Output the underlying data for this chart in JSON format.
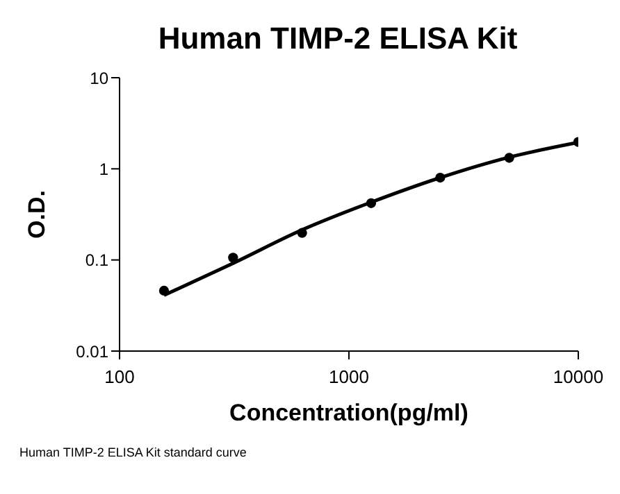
{
  "chart_data": {
    "type": "line",
    "title": "Human TIMP-2 ELISA Kit",
    "xlabel": "Concentration(pg/ml)",
    "ylabel": "O.D.",
    "log": "xy",
    "grid": false,
    "xlim": [
      100,
      10000
    ],
    "xticks": [
      100,
      1000,
      10000
    ],
    "ylim": [
      0.01,
      10
    ],
    "yticks": [
      0.01,
      0.1,
      1,
      10
    ],
    "x": [
      156.25,
      312.5,
      625,
      1250,
      2500,
      5000,
      10000
    ],
    "series": [
      {
        "type": "scatter",
        "marker": "circle",
        "color": "#000000",
        "values": [
          0.046,
          0.106,
          0.198,
          0.42,
          0.8,
          1.32,
          1.97
        ]
      },
      {
        "marker": "none",
        "color": "#000000",
        "x": [
          156.25,
          312.5,
          625,
          1250,
          2500,
          5000,
          10000
        ],
        "values": [
          0.041,
          0.092,
          0.214,
          0.43,
          0.8,
          1.34,
          1.95
        ]
      }
    ],
    "annotations": [
      "Human TIMP-2 ELISA Kit standard curve"
    ]
  }
}
